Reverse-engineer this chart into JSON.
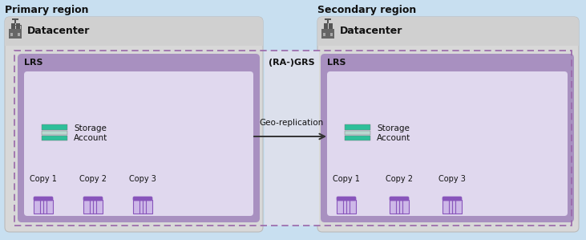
{
  "bg_color": "#c8dff0",
  "primary_region_label": "Primary region",
  "secondary_region_label": "Secondary region",
  "datacenter_label": "Datacenter",
  "lrs_label": "LRS",
  "grs_label": "(RA-)GRS",
  "geo_replication_label": "Geo-replication",
  "storage_account_label_1": "Storage",
  "storage_account_label_2": "Account",
  "copy_labels": [
    "Copy 1",
    "Copy 2",
    "Copy 3"
  ],
  "datacenter_bg": "#d8d8d8",
  "grs_center_bg": "#dce0ec",
  "lrs_outer_bg": "#a890c0",
  "lrs_inner_bg": "#e0d8ee",
  "teal1": "#2ebf9a",
  "teal2": "#b8d8d0",
  "copy_icon_dark": "#8855bb",
  "copy_icon_light": "#cdb8e8",
  "arrow_color": "#333333",
  "dashed_border_color": "#9966aa",
  "text_dark": "#111111",
  "region_font_size": 9,
  "datacenter_font_size": 9,
  "lrs_font_size": 8,
  "grs_font_size": 8,
  "label_font_size": 7,
  "copy_font_size": 7,
  "geo_rep_font_size": 7.5
}
